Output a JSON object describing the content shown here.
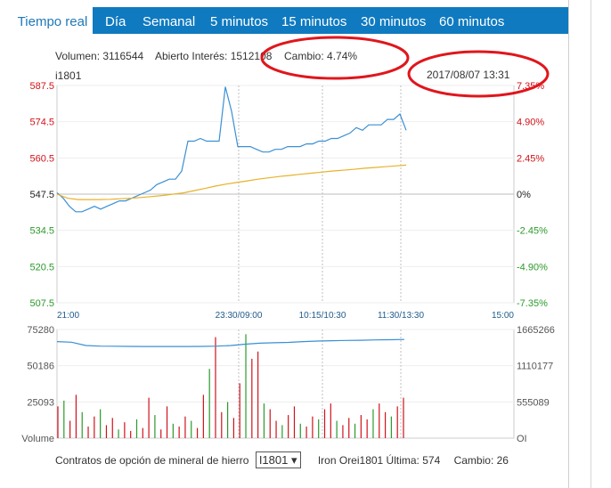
{
  "tabs": [
    "Tiempo real",
    "Día",
    "Semanal",
    "5 minutos",
    "15 minutos",
    "30 minutos",
    "60 minutos"
  ],
  "info": {
    "volume": "Volumen: 3116544",
    "open_interest": "Abierto Interés: 1512108",
    "change": "Cambio: 4.74%",
    "code": "i1801",
    "datetime": "2017/08/07 13:31"
  },
  "bottom": {
    "label": "Contratos de opción de mineral de hierro",
    "select_value": "I1801",
    "last": "Iron Orei1801 Última: 574",
    "change": "Cambio: 26"
  },
  "colors": {
    "tab_bar": "#0f7ac0",
    "price_line": "#3a8fd4",
    "avg_line": "#e8b12a",
    "up": "#d0121a",
    "down": "#2a9a2a",
    "annotation": "#e0161c"
  },
  "chart_data": [
    {
      "type": "line",
      "title": "",
      "y_left_ticks": [
        "587.5",
        "574.5",
        "560.5",
        "547.5",
        "534.5",
        "520.5",
        "507.5"
      ],
      "y_right_ticks": [
        "7.35%",
        "4.90%",
        "2.45%",
        "0%",
        "-2.45%",
        "-4.90%",
        "-7.35%"
      ],
      "x_ticks": [
        "21:00",
        "23:30/09:00",
        "10:15/10:30",
        "11:30/13:30",
        "15:00"
      ],
      "ylim": [
        507.5,
        587.5
      ],
      "series": [
        {
          "values": [
            548,
            546,
            543,
            541,
            541,
            542,
            543,
            542,
            543,
            544,
            545,
            545,
            546,
            547,
            548,
            549,
            551,
            552,
            553,
            553,
            556,
            567,
            567,
            568,
            567,
            567,
            567,
            587,
            578,
            565,
            565,
            565,
            564,
            563,
            563,
            564,
            564,
            565,
            565,
            565,
            566,
            566,
            567,
            567,
            568,
            568,
            569,
            570,
            572,
            571,
            573,
            573,
            573,
            575,
            575,
            577,
            571
          ]
        },
        {
          "values": [
            547.5,
            546,
            545.5,
            545.5,
            545.5,
            545.6,
            545.8,
            546,
            546.3,
            546.6,
            547,
            547.5,
            548,
            548.8,
            549.6,
            550.5,
            551.2,
            551.8,
            552.4,
            553,
            553.5,
            554,
            554.4,
            554.8,
            555.2,
            555.6,
            556,
            556.3,
            556.6,
            557,
            557.3,
            557.6,
            557.9,
            558.2
          ]
        }
      ]
    },
    {
      "type": "bar",
      "title": "",
      "y_left_ticks": [
        "75280",
        "50186",
        "25093",
        "Volume"
      ],
      "y_right_ticks": [
        "1665266",
        "1110177",
        "555089",
        "OI"
      ],
      "series": [
        {
          "name": "OI",
          "values": [
            1480000,
            1470000,
            1420000,
            1410000,
            1408000,
            1406000,
            1404000,
            1404000,
            1404000,
            1405000,
            1406000,
            1410000,
            1420000,
            1440000,
            1455000,
            1462000,
            1468000,
            1480000,
            1488000,
            1493000,
            1497000,
            1500000,
            1505000,
            1508000,
            1512000
          ]
        },
        {
          "name": "Volume",
          "values": [
            22000,
            26000,
            12000,
            30000,
            18000,
            8000,
            15000,
            20000,
            9000,
            14000,
            6000,
            11000,
            5000,
            13000,
            7000,
            28000,
            16000,
            6000,
            22000,
            10000,
            8000,
            15000,
            12000,
            7000,
            30000,
            48000,
            70000,
            18000,
            25000,
            14000,
            38000,
            72000,
            55000,
            60000,
            24000,
            20000,
            12000,
            9000,
            16000,
            22000,
            10000,
            8000,
            15000,
            13000,
            20000,
            24000,
            12000,
            9000,
            14000,
            10000,
            16000,
            13000,
            20000,
            24000,
            18000,
            15000,
            22000,
            28000
          ]
        }
      ]
    }
  ]
}
